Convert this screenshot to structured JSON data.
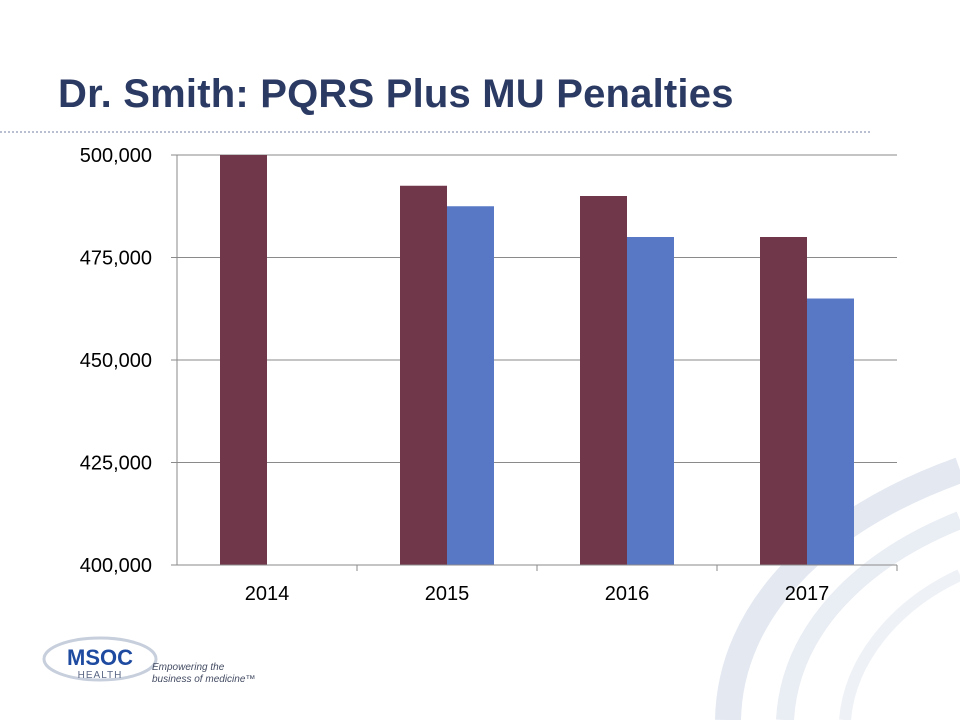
{
  "slide": {
    "title": "Dr. Smith: PQRS Plus MU Penalties"
  },
  "logo": {
    "name": "MSOC",
    "sub": "HEALTH",
    "tagline_line1": "Empowering the",
    "tagline_line2": "business of medicine™"
  },
  "chart_data": {
    "type": "bar",
    "title": "",
    "xlabel": "",
    "ylabel": "",
    "categories": [
      "2014",
      "2015",
      "2016",
      "2017"
    ],
    "series": [
      {
        "values": [
          500000,
          492500,
          490000,
          480000
        ],
        "color": "#70364a"
      },
      {
        "values": [
          null,
          487500,
          480000,
          465000
        ],
        "color": "#5878c6"
      }
    ],
    "ylim": [
      400000,
      500000
    ],
    "yticks": [
      400000,
      425000,
      450000,
      475000,
      500000
    ],
    "ytick_labels": [
      "400,000",
      "425,000",
      "450,000",
      "475,000",
      "500,000"
    ],
    "grid": true,
    "legend": "none"
  },
  "colors": {
    "title": "#2b3a63",
    "gridline": "#8a8a8a",
    "swoosh": "#dfe5ef",
    "logo_blue": "#1e4aa0"
  }
}
